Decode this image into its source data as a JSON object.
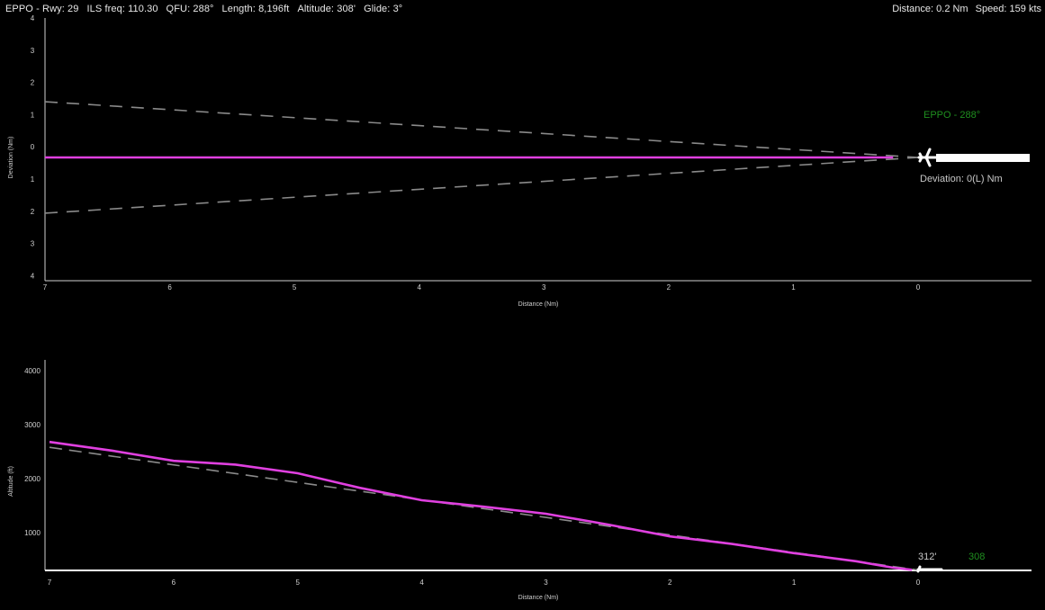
{
  "header": {
    "airport_runway": "EPPO - Rwy: 29",
    "ils_freq": "ILS freq: 110.30",
    "qfu": "QFU: 288°",
    "length": "Length: 8,196ft",
    "altitude": "Altitude: 308'",
    "glide": "Glide: 3°",
    "distance": "Distance: 0.2 Nm",
    "speed": "Speed: 159 kts"
  },
  "colors": {
    "background": "#000000",
    "approach_path": "#e040e0",
    "guide_lines": "#8a8a8a",
    "airport_label": "#1f8f1f",
    "runway": "#ffffff"
  },
  "chart_data": [
    {
      "type": "line",
      "ylabel": "Deviation (Nm)",
      "xlabel": "Distance (Nm)",
      "x_ticks": [
        "7",
        "6",
        "5",
        "4",
        "3",
        "2",
        "1",
        "0"
      ],
      "y_ticks": [
        "4",
        "3",
        "2",
        "1",
        "0",
        "1",
        "2",
        "3",
        "4"
      ],
      "xlim": [
        7,
        0
      ],
      "ylim": [
        -4,
        4
      ],
      "runway_label": "EPPO - 288°",
      "deviation_label": "Deviation: 0(L) Nm",
      "series": [
        {
          "x": [
            7,
            6,
            5,
            4,
            3,
            2,
            1,
            0.2
          ],
          "values": [
            0,
            0,
            0,
            0,
            0,
            0,
            0,
            0
          ]
        },
        {
          "x": [
            7,
            6,
            5,
            4,
            3,
            2,
            1,
            0
          ],
          "values": [
            2.1,
            1.8,
            1.5,
            1.2,
            0.9,
            0.6,
            0.3,
            0
          ]
        },
        {
          "x": [
            7,
            6,
            5,
            4,
            3,
            2,
            1,
            0
          ],
          "values": [
            -2.1,
            -1.8,
            -1.5,
            -1.2,
            -0.9,
            -0.6,
            -0.3,
            0
          ]
        }
      ]
    },
    {
      "type": "line",
      "ylabel": "Altitude (ft)",
      "xlabel": "Distance (Nm)",
      "x_ticks": [
        "7",
        "6",
        "5",
        "4",
        "3",
        "2",
        "1",
        "0"
      ],
      "y_ticks": [
        "4000",
        "3000",
        "2000",
        "1000"
      ],
      "xlim": [
        7,
        0
      ],
      "ylim": [
        0,
        4000
      ],
      "current_altitude_label": "312'",
      "field_elevation_label": "308",
      "series": [
        {
          "x": [
            7,
            6.5,
            6,
            5.5,
            5,
            4.5,
            4,
            3.5,
            3,
            2.5,
            2,
            1.5,
            1,
            0.5,
            0.2,
            0.05
          ],
          "values": [
            2680,
            2520,
            2330,
            2260,
            2100,
            1830,
            1600,
            1480,
            1350,
            1150,
            930,
            790,
            620,
            470,
            350,
            312
          ]
        },
        {
          "x": [
            7,
            0
          ],
          "values": [
            2580,
            308
          ]
        }
      ]
    }
  ]
}
